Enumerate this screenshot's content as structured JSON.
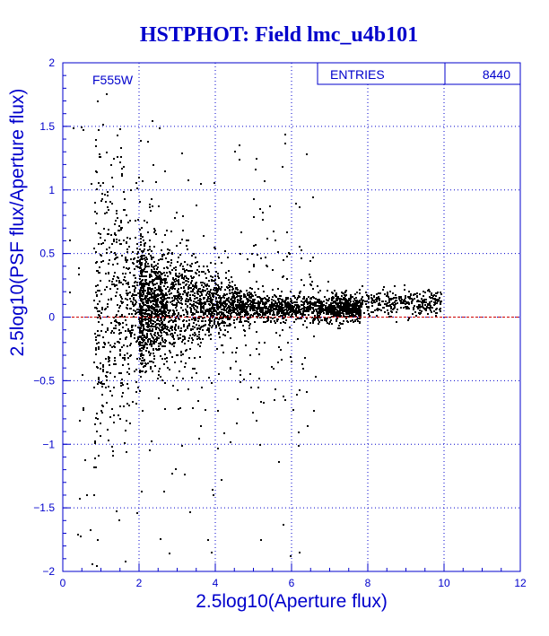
{
  "chart_data": {
    "type": "scatter",
    "title": "HSTPHOT: Field lmc_u4b101",
    "xlabel": "2.5log10(Aperture flux)",
    "ylabel": "2.5log10(PSF flux/Aperture flux)",
    "xlim": [
      0,
      12
    ],
    "ylim": [
      -2,
      2
    ],
    "x_ticks": [
      "0",
      "2",
      "4",
      "6",
      "8",
      "10",
      "12"
    ],
    "y_ticks": [
      "2",
      "1.5",
      "1",
      "0.5",
      "0",
      "-0.5",
      "-1",
      "-1.5",
      "-2"
    ],
    "grid": true,
    "filter_label": "F555W",
    "stats_box": {
      "entries_label": "ENTRIES",
      "entries_value": "8440"
    },
    "reference_line": {
      "y": 0,
      "color": "#cc0000"
    },
    "point_color": "#000000",
    "axis_color": "#0000cc",
    "grid_color": "#0000cc",
    "distribution": {
      "total_entries": 8440,
      "x_range": [
        0.1,
        9.9
      ],
      "core": {
        "x_range": [
          2,
          7.5
        ],
        "y_center": 0.1,
        "y_spread": 0.08
      },
      "faint_fan": {
        "x_range": [
          0.1,
          2.5
        ],
        "y_spread_at_x0": 1.5
      },
      "bright_tail": {
        "x_range": [
          7.5,
          9.8
        ],
        "y_center": 0.12
      }
    }
  }
}
